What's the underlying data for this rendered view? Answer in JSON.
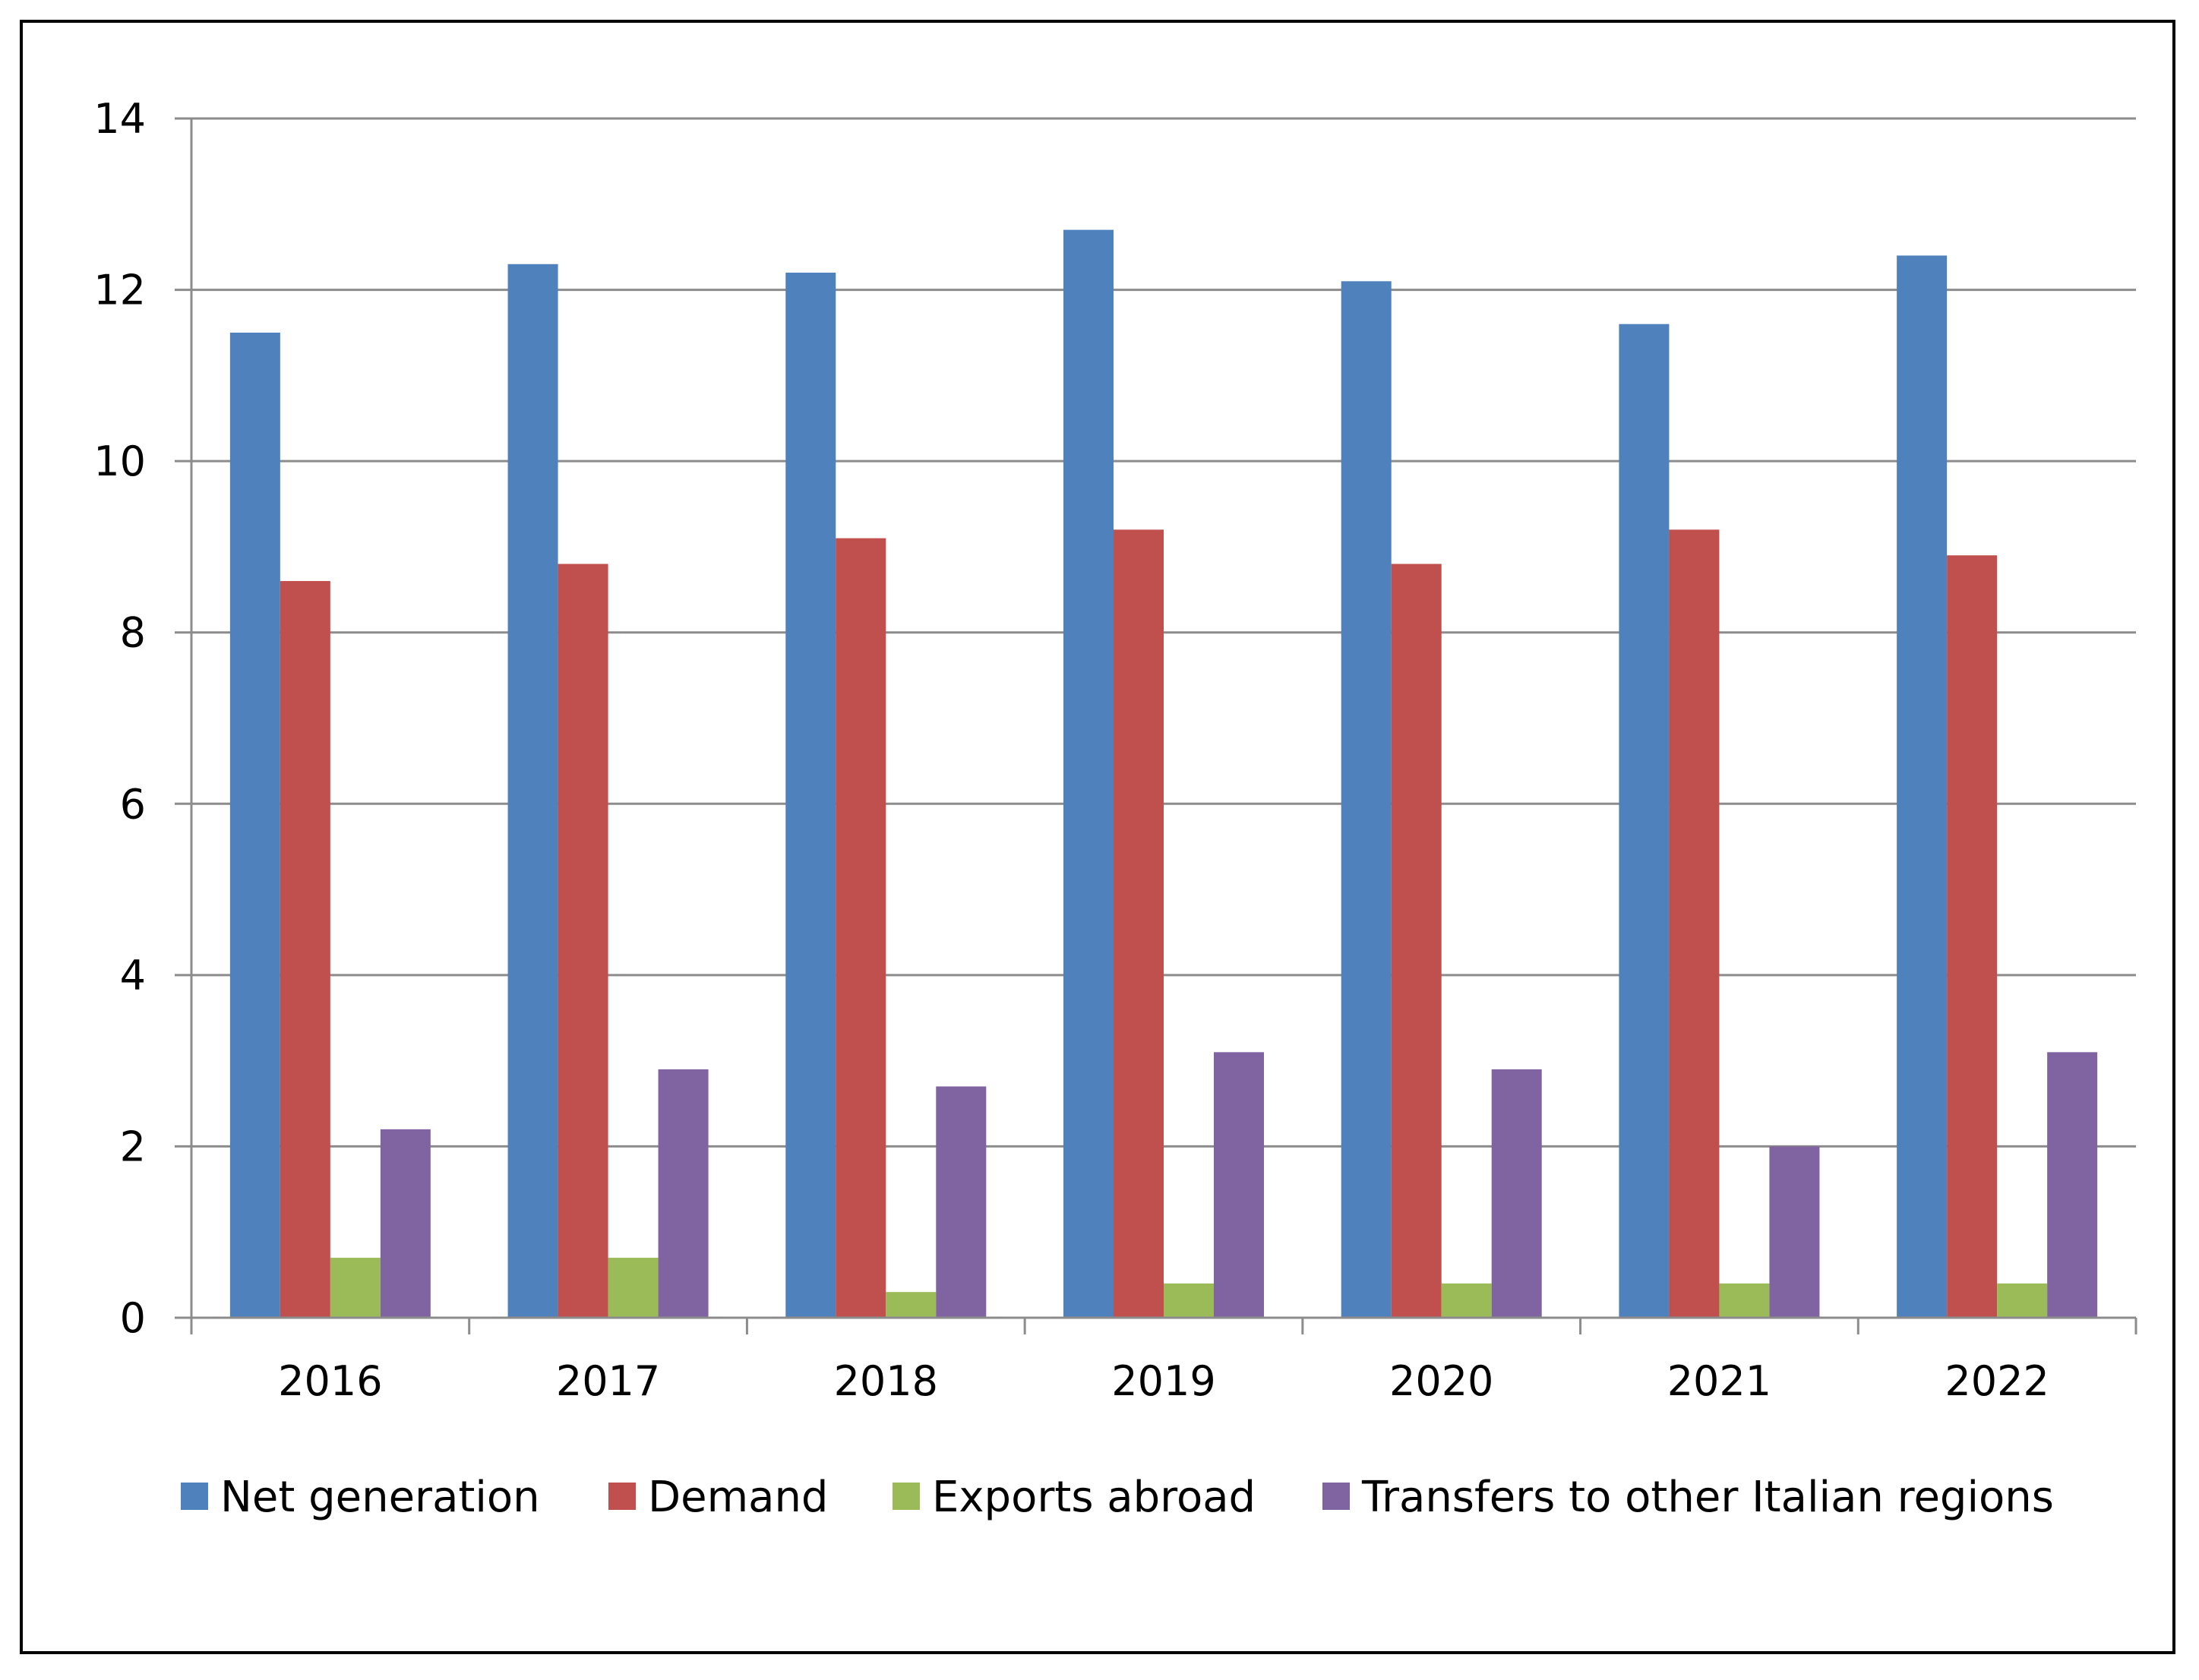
{
  "chart_data": {
    "type": "bar",
    "title": "",
    "xlabel": "",
    "ylabel": "",
    "categories": [
      "2016",
      "2017",
      "2018",
      "2019",
      "2020",
      "2021",
      "2022"
    ],
    "series": [
      {
        "name": "Net generation",
        "color": "#4F81BD",
        "values": [
          11.5,
          12.3,
          12.2,
          12.7,
          12.1,
          11.6,
          12.4
        ]
      },
      {
        "name": "Demand",
        "color": "#C0504D",
        "values": [
          8.6,
          8.8,
          9.1,
          9.2,
          8.8,
          9.2,
          8.9
        ]
      },
      {
        "name": "Exports abroad",
        "color": "#9BBB59",
        "values": [
          0.7,
          0.7,
          0.3,
          0.4,
          0.4,
          0.4,
          0.4
        ]
      },
      {
        "name": "Transfers to other Italian regions",
        "color": "#8064A2",
        "values": [
          2.2,
          2.9,
          2.7,
          3.1,
          2.9,
          2.0,
          3.1
        ]
      }
    ],
    "ylim": [
      0,
      14
    ],
    "yticks": [
      "0",
      "2",
      "4",
      "6",
      "8",
      "10",
      "12",
      "14"
    ],
    "grid": true,
    "legend_position": "bottom"
  }
}
